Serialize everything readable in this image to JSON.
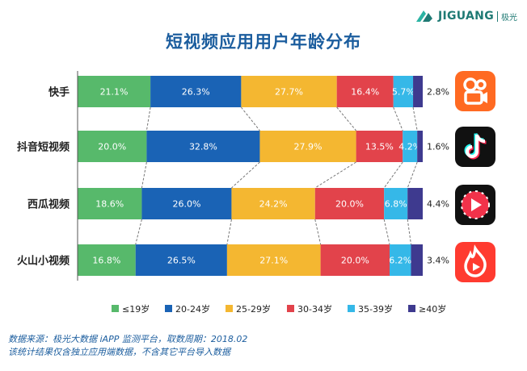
{
  "brand": {
    "wordmark": "JIGUANG",
    "cn": "极光"
  },
  "chart_data": {
    "type": "bar",
    "stacked": true,
    "orientation": "horizontal",
    "title": "短视频应用用户年龄分布",
    "categories": [
      "快手",
      "抖音短视频",
      "西瓜视频",
      "火山小视频"
    ],
    "series": [
      {
        "name": "≤19岁",
        "color": "#57b96b",
        "values": [
          21.1,
          20.0,
          18.6,
          16.8
        ]
      },
      {
        "name": "20-24岁",
        "color": "#1a63b5",
        "values": [
          26.3,
          32.8,
          26.0,
          26.5
        ]
      },
      {
        "name": "25-29岁",
        "color": "#f4b731",
        "values": [
          27.7,
          27.9,
          24.2,
          27.1
        ]
      },
      {
        "name": "30-34岁",
        "color": "#e2434b",
        "values": [
          16.4,
          13.5,
          20.0,
          20.0
        ]
      },
      {
        "name": "35-39岁",
        "color": "#35b8e8",
        "values": [
          5.7,
          4.2,
          6.8,
          6.2
        ]
      },
      {
        "name": "≥40岁",
        "color": "#3e3a8f",
        "values": [
          2.8,
          1.6,
          4.4,
          3.4
        ]
      }
    ],
    "labels": [
      [
        "21.1%",
        "26.3%",
        "27.7%",
        "16.4%",
        "5.7%",
        "2.8%"
      ],
      [
        "20.0%",
        "32.8%",
        "27.9%",
        "13.5%",
        "4.2%",
        "1.6%"
      ],
      [
        "18.6%",
        "26.0%",
        "24.2%",
        "20.0%",
        "6.8%",
        "4.4%"
      ],
      [
        "16.8%",
        "26.5%",
        "27.1%",
        "20.0%",
        "6.2%",
        "3.4%"
      ]
    ],
    "xlim": [
      0,
      100
    ],
    "legend_position": "bottom",
    "grid": false
  },
  "icons": [
    "kuaishou-logo-icon",
    "douyin-logo-icon",
    "xigua-logo-icon",
    "huoshan-logo-icon"
  ],
  "footnote": {
    "line1": "数据来源：极光大数据 iAPP 监测平台，取数周期：2018.02",
    "line2": "该统计结果仅含独立应用端数据，不含其它平台导入数据"
  }
}
